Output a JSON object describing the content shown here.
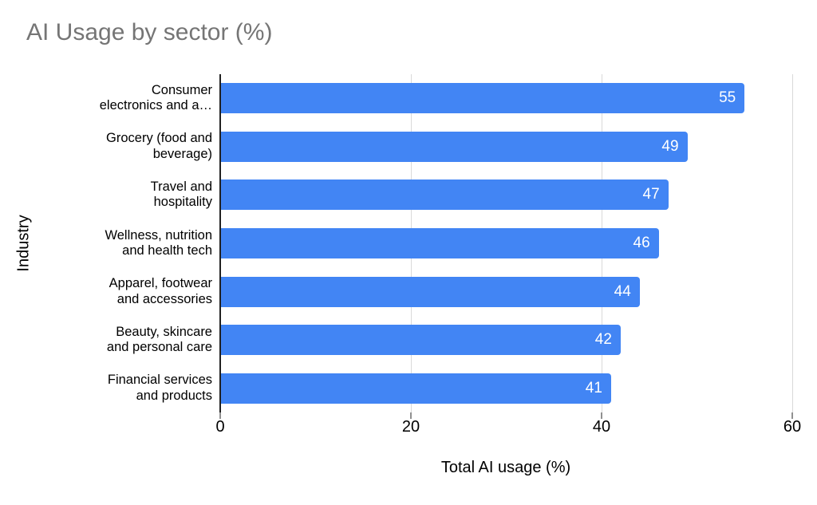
{
  "chart_title": "AI Usage by sector (%)",
  "chart_data": {
    "type": "bar",
    "orientation": "horizontal",
    "title": "AI Usage by sector (%)",
    "xlabel": "Total AI usage (%)",
    "ylabel": "Industry",
    "categories": [
      "Consumer electronics and a…",
      "Grocery (food and beverage)",
      "Travel and hospitality",
      "Wellness, nutrition and health tech",
      "Apparel, footwear and accessories",
      "Beauty, skincare and personal care",
      "Financial services and products"
    ],
    "category_label_lines": [
      [
        "Consumer",
        "electronics and a…"
      ],
      [
        "Grocery (food and",
        "beverage)"
      ],
      [
        "Travel and",
        "hospitality"
      ],
      [
        "Wellness, nutrition",
        "and health tech"
      ],
      [
        "Apparel, footwear",
        "and accessories"
      ],
      [
        "Beauty, skincare",
        "and personal care"
      ],
      [
        "Financial services",
        "and products"
      ]
    ],
    "values": [
      55,
      49,
      47,
      46,
      44,
      42,
      41
    ],
    "xlim": [
      0,
      60
    ],
    "xticks": [
      0,
      20,
      40,
      60
    ],
    "grid": true,
    "legend": "none",
    "colors": {
      "bar": "#4285f4",
      "value_label": "#ffffff",
      "title": "#757575",
      "axis_text": "#000000",
      "gridline": "#d9d9d9",
      "zero_axis": "#212121",
      "background": "#ffffff"
    }
  }
}
